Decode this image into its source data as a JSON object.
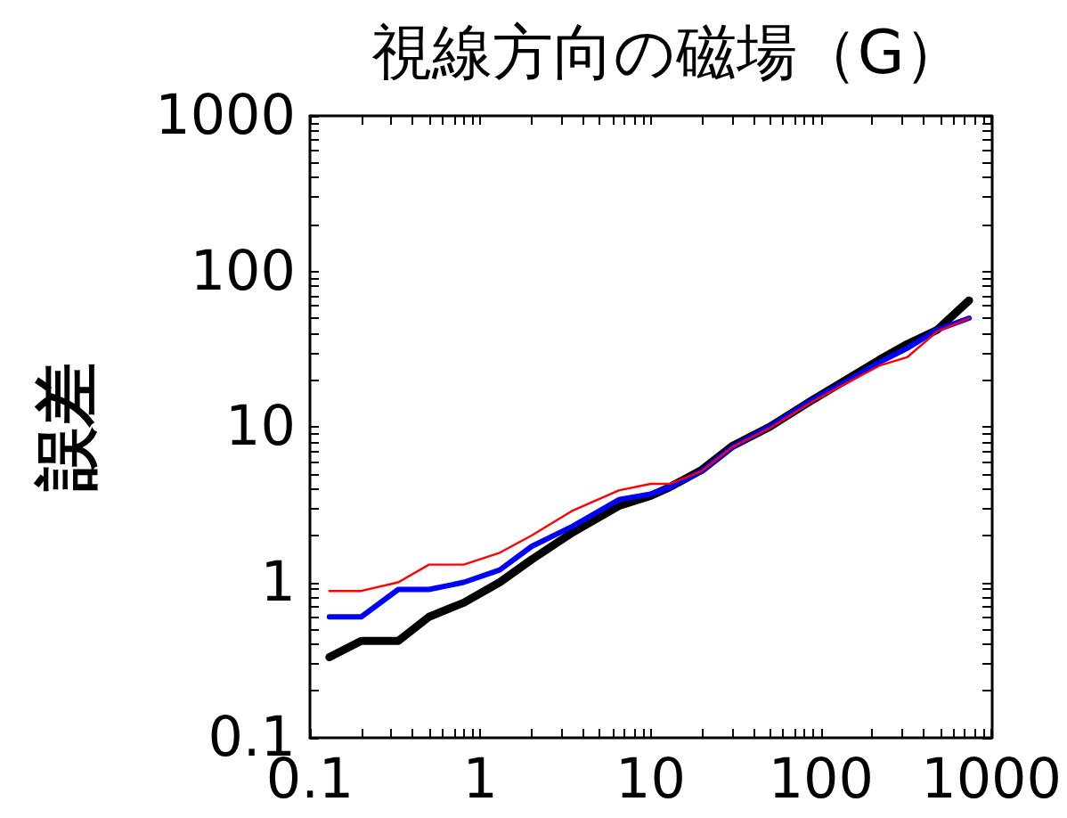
{
  "chart_data": {
    "type": "line",
    "title": "視線方向の磁場（G）",
    "ylabel": "誤差",
    "x": [
      0.13,
      0.2,
      0.33,
      0.5,
      0.8,
      1.3,
      2,
      3.5,
      6.5,
      10,
      13,
      20,
      30,
      50,
      90,
      140,
      220,
      320,
      480,
      740
    ],
    "series": [
      {
        "color": "#000000",
        "values": [
          0.33,
          0.42,
          0.42,
          0.6,
          0.74,
          1,
          1.4,
          2.1,
          3.1,
          3.6,
          4.1,
          5.3,
          7.5,
          10,
          15,
          20,
          27,
          34,
          42,
          65
        ]
      },
      {
        "color": "#0000ff",
        "values": [
          0.6,
          0.6,
          0.9,
          0.9,
          1,
          1.2,
          1.7,
          2.3,
          3.4,
          3.7,
          4.1,
          5.2,
          7.4,
          10,
          15,
          19.5,
          26,
          32,
          42,
          50
        ]
      },
      {
        "color": "#ff0000",
        "values": [
          0.88,
          0.88,
          1,
          1.3,
          1.3,
          1.55,
          2,
          2.9,
          3.9,
          4.3,
          4.3,
          5.2,
          7.4,
          9.8,
          14.6,
          19,
          24.7,
          28,
          41,
          50
        ]
      }
    ],
    "log": "xy",
    "xlim": [
      0.1,
      1000
    ],
    "ylim": [
      0.1,
      1000
    ],
    "xticks": [
      0.1,
      1,
      10,
      100,
      1000
    ],
    "yticks": [
      0.1,
      1,
      10,
      100,
      1000
    ],
    "grid": false,
    "marker": "none",
    "line_style": "solid"
  }
}
